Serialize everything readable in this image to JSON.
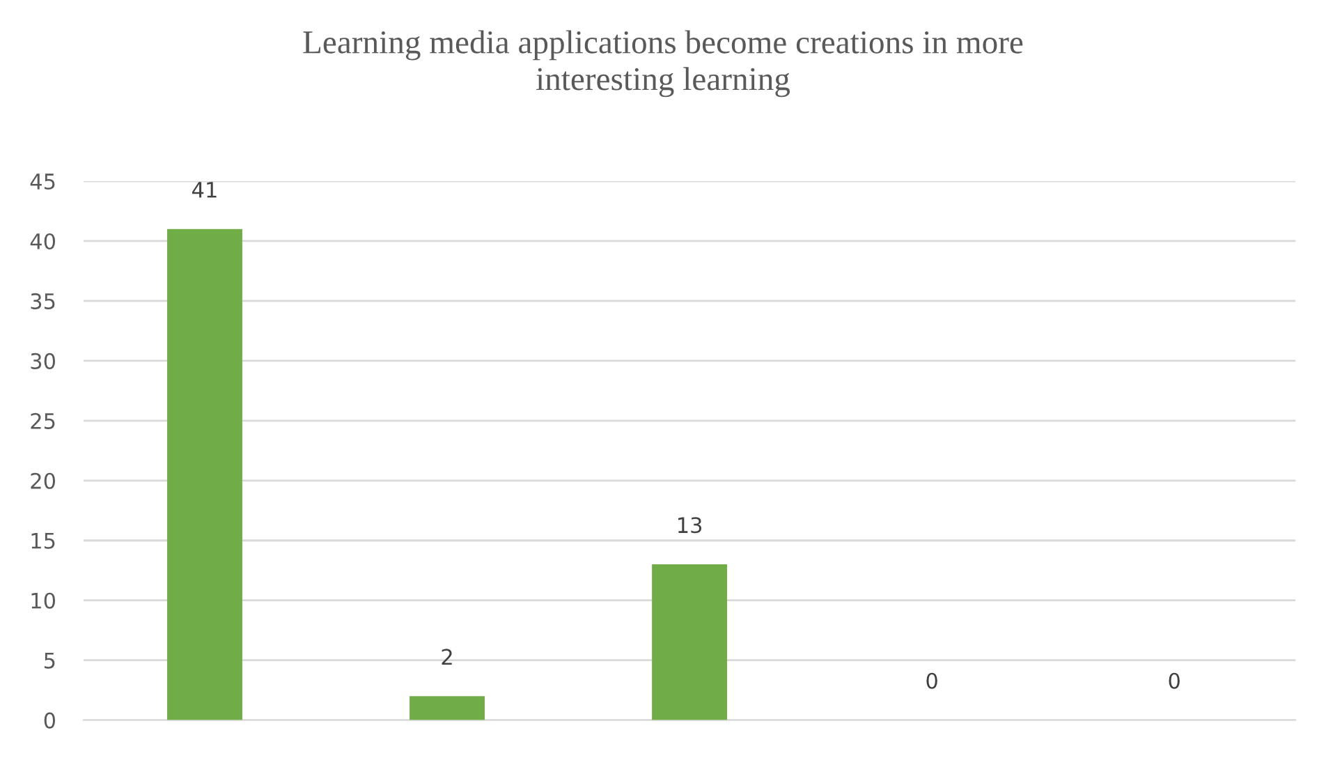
{
  "chart_data": {
    "type": "bar",
    "title": "Learning media applications become creations in more\ninteresting learning",
    "categories": [
      null,
      null,
      null,
      null,
      null
    ],
    "values": [
      41,
      2,
      13,
      0,
      0
    ],
    "color": "#70ad47",
    "ylim": [
      0,
      45
    ],
    "yticks": [
      0,
      5,
      10,
      15,
      20,
      25,
      30,
      35,
      40,
      45
    ],
    "grid": "y",
    "data_labels": true
  }
}
